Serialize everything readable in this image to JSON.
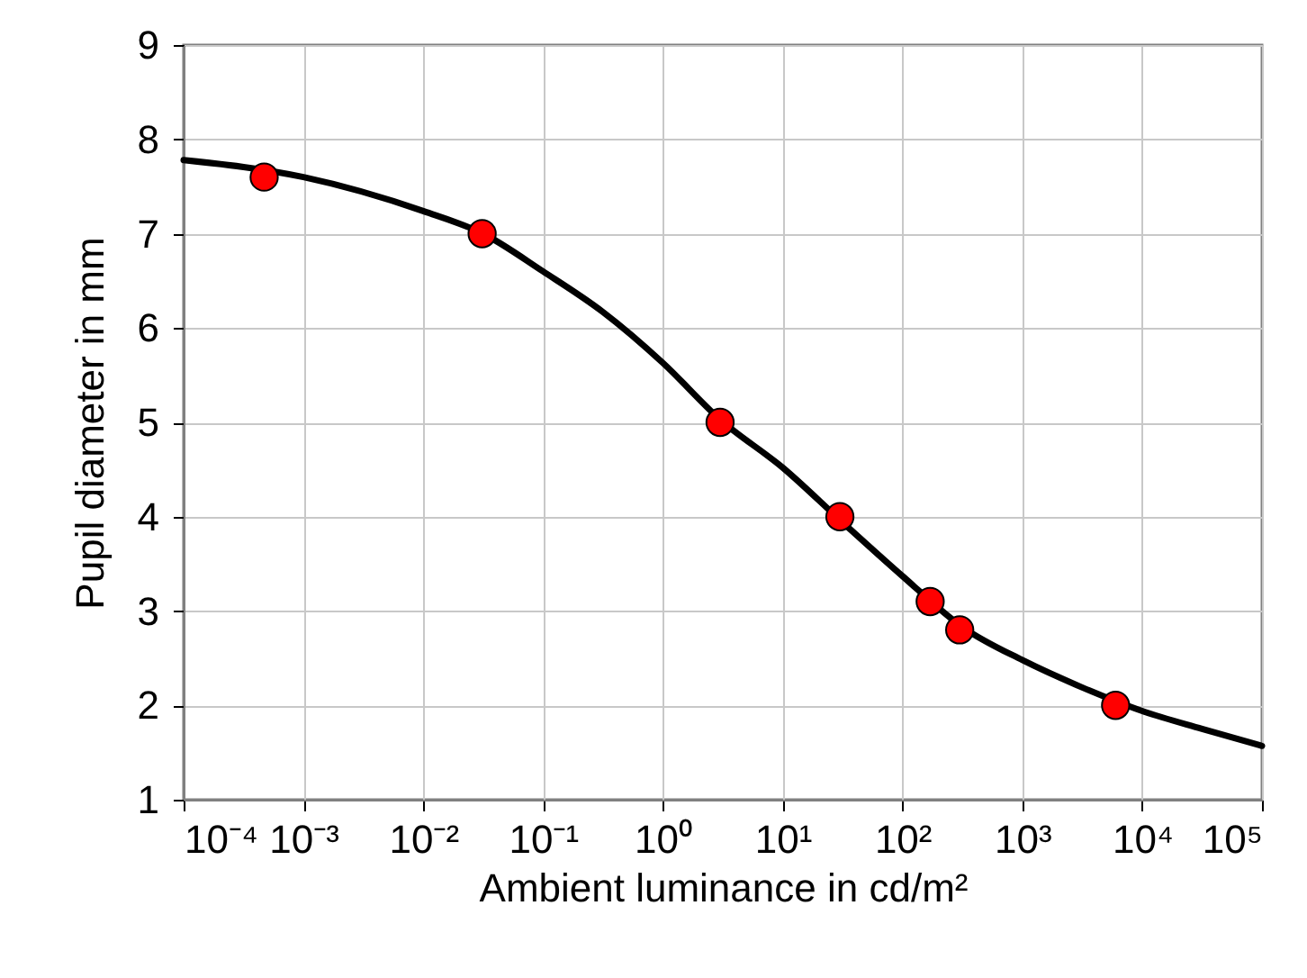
{
  "chart_data": {
    "type": "scatter",
    "xlabel": "Ambient luminance in cd/m²",
    "ylabel": "Pupil diameter in mm",
    "log": "x",
    "xlim": [
      0.0001,
      100000
    ],
    "ylim": [
      1,
      9
    ],
    "xticks": [
      {
        "value": 0.0001,
        "label": "10⁻⁴"
      },
      {
        "value": 0.001,
        "label": "10⁻³"
      },
      {
        "value": 0.01,
        "label": "10⁻²"
      },
      {
        "value": 0.1,
        "label": "10⁻¹"
      },
      {
        "value": 1,
        "label": "10⁰"
      },
      {
        "value": 10,
        "label": "10¹"
      },
      {
        "value": 100,
        "label": "10²"
      },
      {
        "value": 1000,
        "label": "10³"
      },
      {
        "value": 10000,
        "label": "10⁴"
      },
      {
        "value": 100000,
        "label": "10⁵"
      }
    ],
    "yticks": [
      1,
      2,
      3,
      4,
      5,
      6,
      7,
      8,
      9
    ],
    "grid": true,
    "line_style": "solid",
    "series": [
      {
        "type": "line",
        "marker": "none",
        "color": "#000000",
        "x": [
          0.0001,
          0.001,
          0.01,
          0.0316,
          0.1,
          0.316,
          1,
          3,
          10,
          31.6,
          100,
          316,
          1000,
          3160,
          10000,
          31600,
          100000
        ],
        "values": [
          7.78,
          7.6,
          7.24,
          7.0,
          6.6,
          6.17,
          5.63,
          5.03,
          4.52,
          3.94,
          3.37,
          2.83,
          2.48,
          2.19,
          1.94,
          1.75,
          1.57
        ]
      },
      {
        "marker": "circle",
        "color": "#ff0000",
        "x": [
          0.00047,
          0.031,
          3.0,
          30,
          170,
          300,
          6000
        ],
        "values": [
          7.6,
          7.0,
          5.0,
          4.0,
          3.1,
          2.8,
          2.0
        ]
      }
    ]
  }
}
